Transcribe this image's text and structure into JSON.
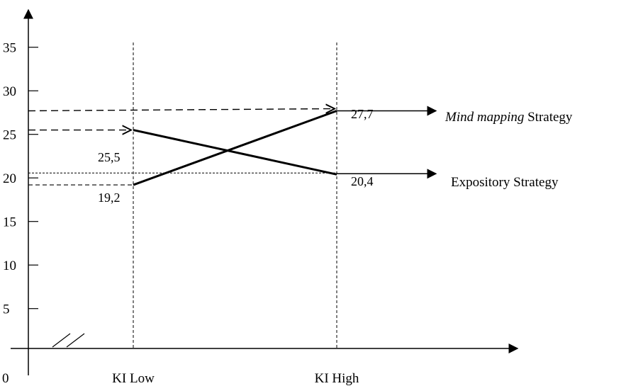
{
  "chart_data": {
    "type": "line",
    "title": "",
    "xlabel": "",
    "ylabel": "",
    "categories": [
      "KI Low",
      "KI High"
    ],
    "ylim": [
      0,
      40
    ],
    "yticks": [
      5,
      10,
      15,
      20,
      25,
      30,
      35
    ],
    "origin_label": "0",
    "series": [
      {
        "name_italic": "Mind mapping",
        "name_rest": " Strategy",
        "values": [
          19.2,
          27.7
        ],
        "value_labels": [
          "19,2",
          "27,7"
        ]
      },
      {
        "name": "Expository Strategy",
        "values": [
          25.5,
          20.4
        ],
        "value_labels": [
          "25,5",
          "20,4"
        ]
      }
    ],
    "axis_break": true,
    "grid": false
  }
}
